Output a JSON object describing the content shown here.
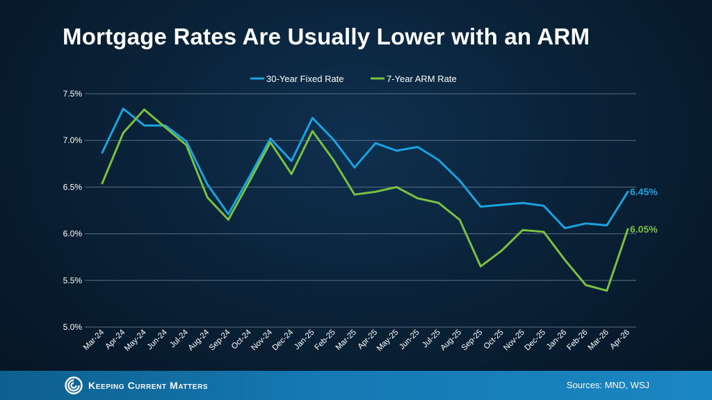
{
  "title": "Mortgage Rates Are Usually Lower with an ARM",
  "footer": {
    "brand": "Keeping Current Matters",
    "sources": "Sources: MND, WSJ"
  },
  "colors": {
    "fixed": "#1aa3e0",
    "arm": "#7ac143",
    "grid": "#5a6e80",
    "text": "#ffffff"
  },
  "chart_data": {
    "type": "line",
    "title": "Mortgage Rates Are Usually Lower with an ARM",
    "xlabel": "",
    "ylabel": "",
    "ylim": [
      5.0,
      7.5
    ],
    "yticks": [
      "5.0%",
      "5.5%",
      "6.0%",
      "6.5%",
      "7.0%",
      "7.5%"
    ],
    "grid": true,
    "legend": "top-center",
    "categories": [
      "Mar-24",
      "Apr-24",
      "May-24",
      "Jun-24",
      "Jul-24",
      "Aug-24",
      "Sep-24",
      "Oct-24",
      "Nov-24",
      "Dec-24",
      "Jan-25",
      "Feb-25",
      "Mar-25",
      "Apr-25",
      "May-25",
      "Jun-25",
      "Jul-25",
      "Aug-25",
      "Sep-25",
      "Oct-25",
      "Nov-25",
      "Dec-25",
      "Jan-26",
      "Feb-26",
      "Mar-26",
      "Apr-26"
    ],
    "series": [
      {
        "name": "30-Year Fixed Rate",
        "color": "#1aa3e0",
        "values": [
          6.87,
          7.34,
          7.16,
          7.16,
          6.99,
          6.53,
          6.21,
          6.61,
          7.02,
          6.78,
          7.24,
          7.01,
          6.71,
          6.97,
          6.89,
          6.93,
          6.79,
          6.57,
          6.29,
          6.31,
          6.33,
          6.3,
          6.06,
          6.11,
          6.09,
          6.45
        ],
        "end_label": "6.45%"
      },
      {
        "name": "7-Year ARM Rate",
        "color": "#7ac143",
        "values": [
          6.54,
          7.08,
          7.33,
          7.14,
          6.95,
          6.39,
          6.15,
          6.56,
          6.98,
          6.64,
          7.1,
          6.79,
          6.42,
          6.45,
          6.5,
          6.38,
          6.33,
          6.15,
          5.65,
          5.82,
          6.04,
          6.02,
          5.72,
          5.45,
          5.39,
          6.05
        ],
        "end_label": "6.05%"
      }
    ]
  }
}
